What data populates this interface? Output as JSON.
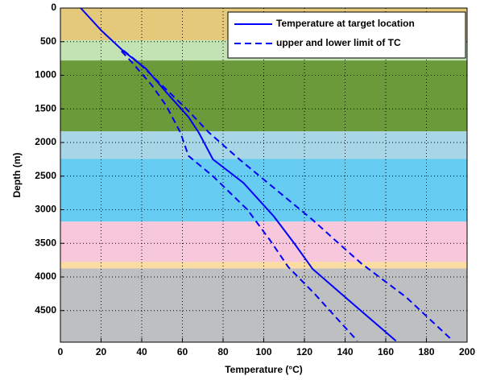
{
  "chart_data": {
    "type": "line",
    "x_label": "Temperature (°C)",
    "y_label": "Depth (m)",
    "xlim": [
      0,
      200
    ],
    "xticks": [
      0,
      20,
      40,
      60,
      80,
      100,
      120,
      140,
      160,
      180,
      200
    ],
    "ylim": [
      0,
      4970
    ],
    "yticks": [
      0,
      500,
      1000,
      1500,
      2000,
      2500,
      3000,
      3500,
      4000,
      4500
    ],
    "y_reversed": true,
    "grid": true,
    "legend": "upper right",
    "layers": [
      {
        "top": 0,
        "bottom": 480,
        "color": "#e5c97a"
      },
      {
        "top": 480,
        "bottom": 780,
        "color": "#c4e3b4"
      },
      {
        "top": 780,
        "bottom": 1835,
        "color": "#6a9a3a"
      },
      {
        "top": 1835,
        "bottom": 2242,
        "color": "#a9d6e6"
      },
      {
        "top": 2242,
        "bottom": 3177,
        "color": "#66ccf2"
      },
      {
        "top": 3177,
        "bottom": 3777,
        "color": "#f7c7dc"
      },
      {
        "top": 3777,
        "bottom": 3873,
        "color": "#fbdca0"
      },
      {
        "top": 3873,
        "bottom": 4970,
        "color": "#bdbfc0"
      }
    ],
    "series": [
      {
        "name": "Temperature at target location",
        "color": "#0000ff",
        "dashed": false,
        "lines": [
          {
            "x": [
              10,
              20,
              31,
              42,
              52,
              63,
              68,
              75,
              90,
              105,
              115,
              124,
              140,
              165
            ],
            "y": [
              0,
              330,
              640,
              900,
              1250,
              1620,
              1850,
              2250,
              2600,
              3100,
              3500,
              3880,
              4300,
              4950
            ]
          }
        ]
      },
      {
        "name": "upper and lower limit of TC",
        "color": "#0000ff",
        "dashed": true,
        "lines": [
          {
            "x": [
              31,
              38,
              50,
              62,
              73,
              88,
              108,
              124,
              135,
              148,
              170,
              193
            ],
            "y": [
              630,
              800,
              1150,
              1500,
              1850,
              2250,
              2750,
              3150,
              3450,
              3800,
              4300,
              4950
            ]
          },
          {
            "x": [
              30,
              35,
              45,
              52,
              59,
              63,
              75,
              92,
              103,
              112,
              125,
              146
            ],
            "y": [
              640,
              800,
              1150,
              1450,
              1850,
              2200,
              2500,
              3000,
              3450,
              3850,
              4250,
              4950
            ]
          }
        ]
      }
    ]
  }
}
